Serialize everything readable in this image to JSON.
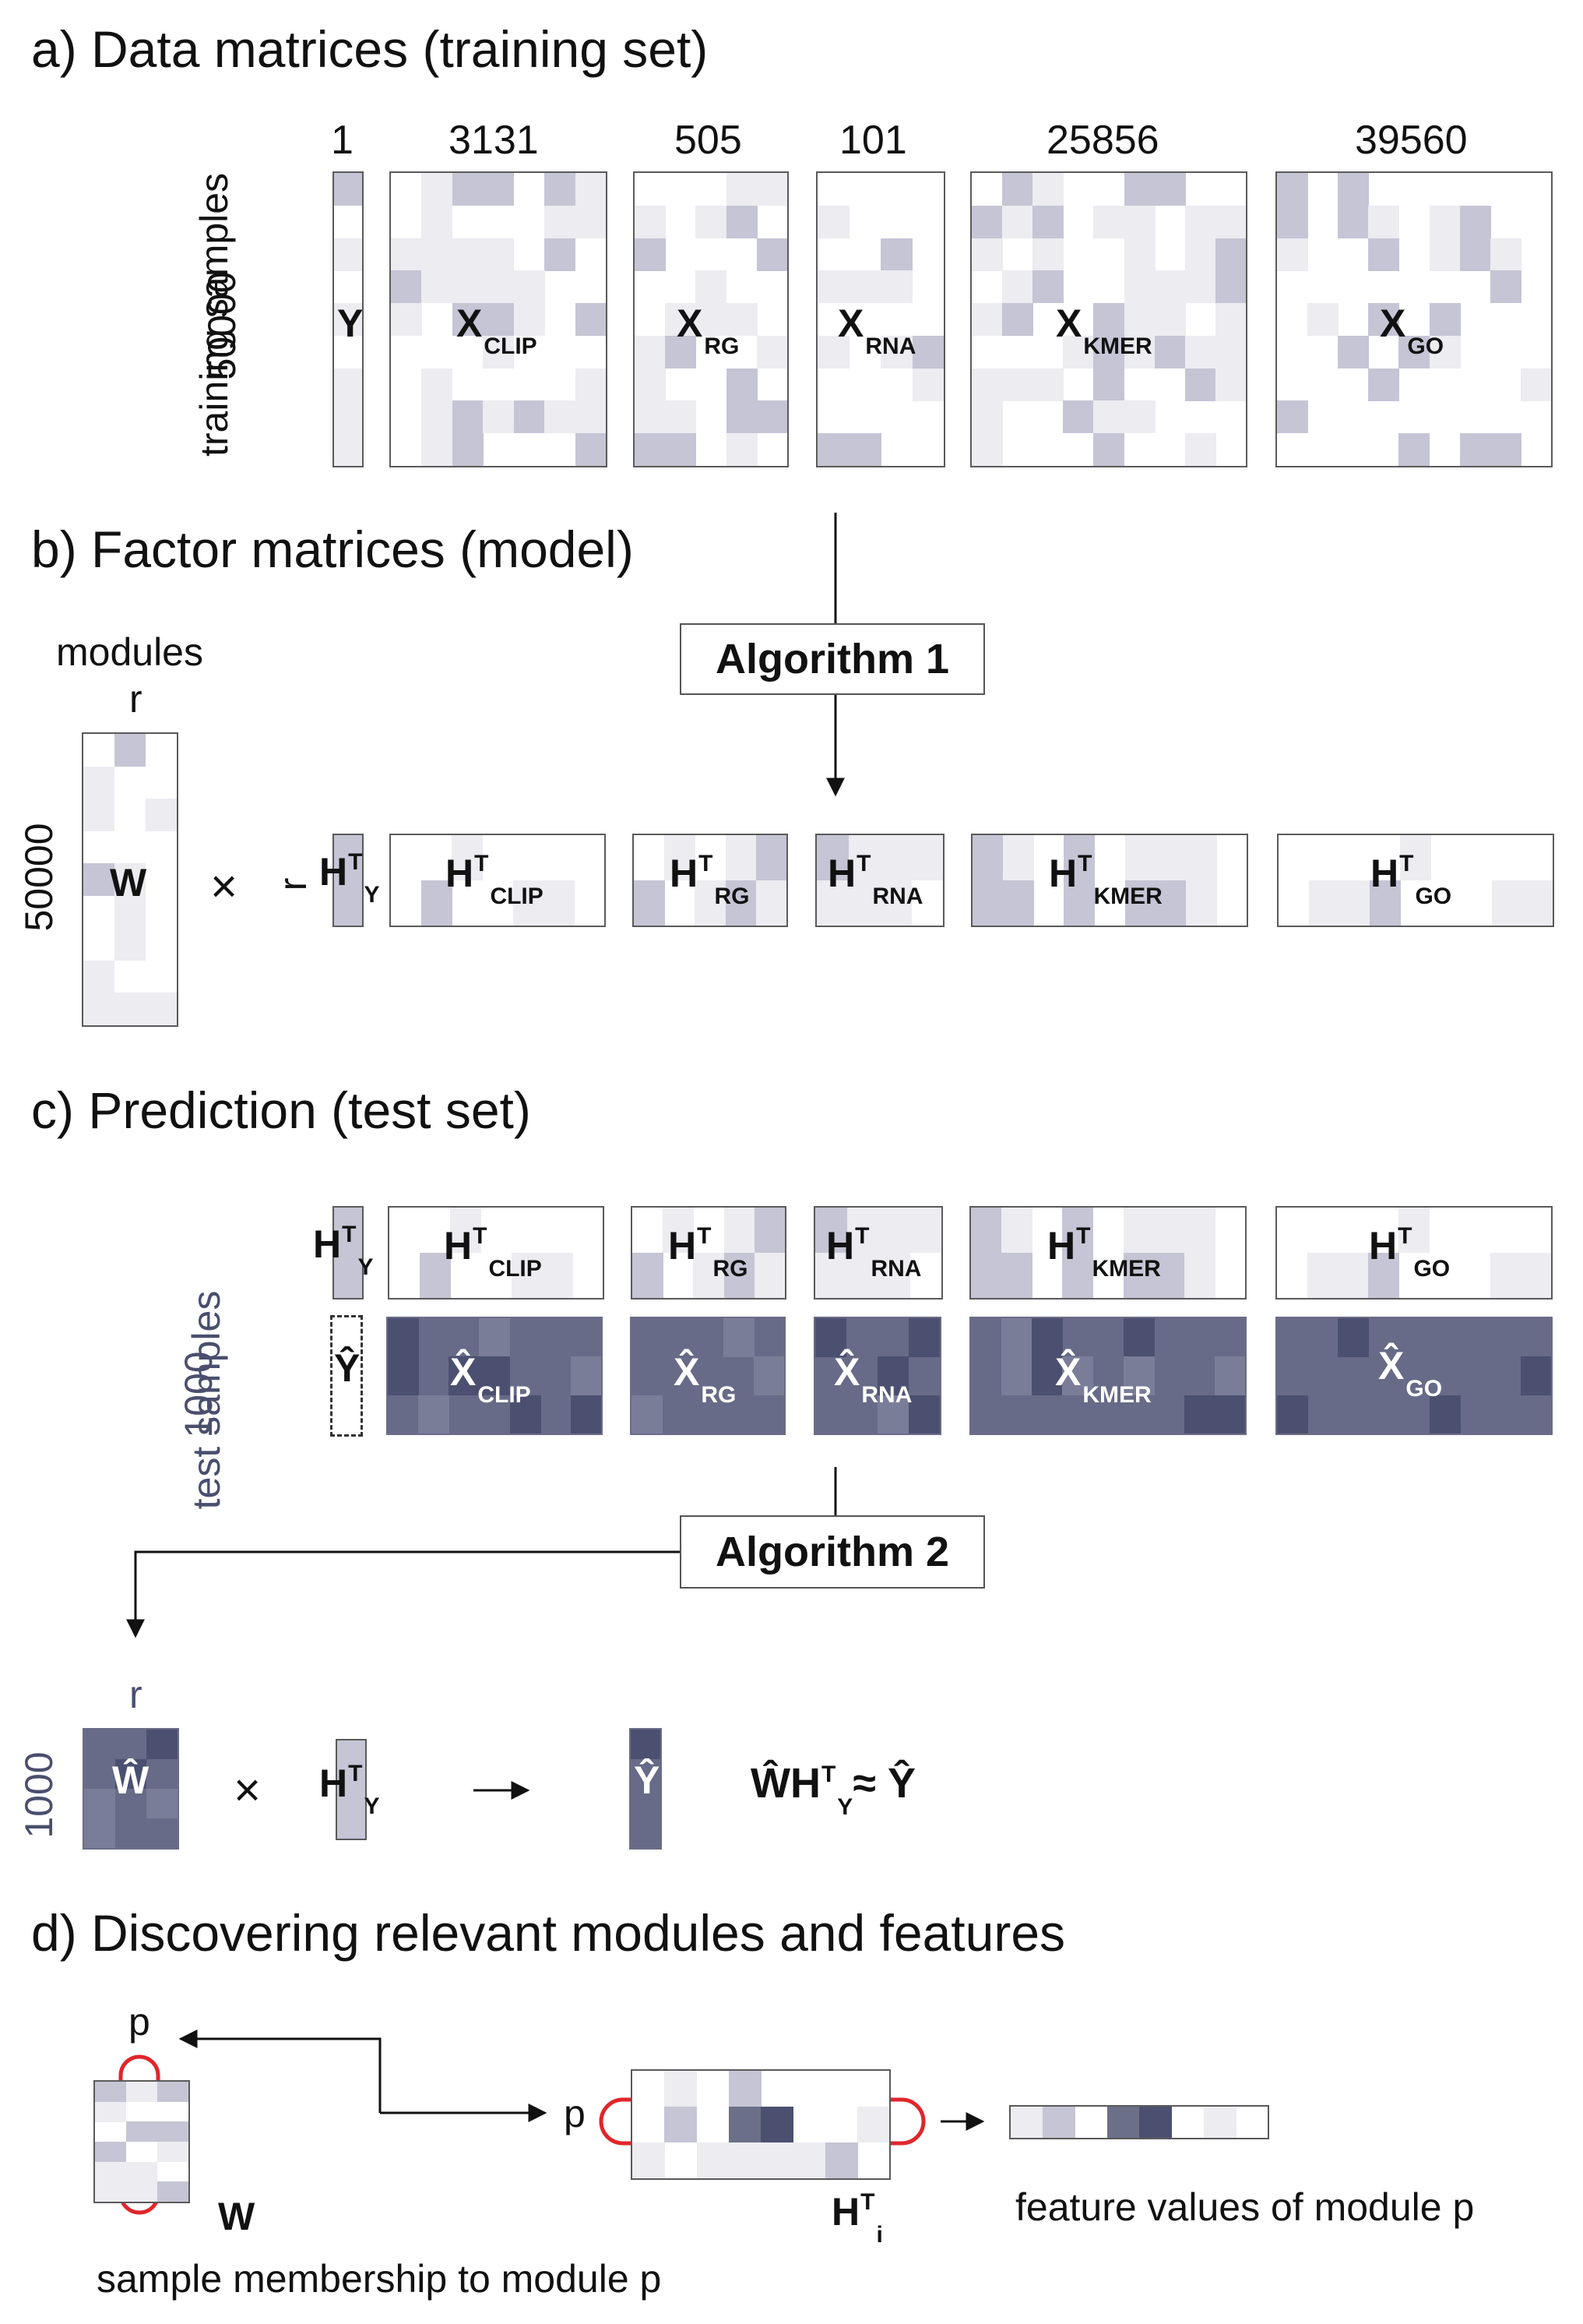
{
  "panel_a": {
    "title": "a) Data matrices (training set)",
    "side_label": "training samples",
    "side_count": "50000",
    "matrices": [
      {
        "count": "1",
        "name": "Y",
        "sub": ""
      },
      {
        "count": "3131",
        "name": "X",
        "sub": "CLIP"
      },
      {
        "count": "505",
        "name": "X",
        "sub": "RG"
      },
      {
        "count": "101",
        "name": "X",
        "sub": "RNA"
      },
      {
        "count": "25856",
        "name": "X",
        "sub": "KMER"
      },
      {
        "count": "39560",
        "name": "X",
        "sub": "GO"
      }
    ]
  },
  "panel_b": {
    "title": "b) Factor matrices (model)",
    "algorithm": "Algorithm 1",
    "modules_label": "modules",
    "r_label": "r",
    "row_count": "50000",
    "w_name": "W",
    "times": "×",
    "h_name": "H",
    "h_sup": "T",
    "h_subs": [
      "Y",
      "CLIP",
      "RG",
      "RNA",
      "KMER",
      "GO"
    ]
  },
  "panel_c": {
    "title": "c) Prediction (test set)",
    "algorithm": "Algorithm 2",
    "side_label": "test samples",
    "side_count": "1000",
    "h_name": "H",
    "h_sup": "T",
    "h_subs": [
      "Y",
      "CLIP",
      "RG",
      "RNA",
      "KMER",
      "GO"
    ],
    "xhat_names": [
      {
        "name": "Ŷ",
        "sub": ""
      },
      {
        "name": "X̂",
        "sub": "CLIP"
      },
      {
        "name": "X̂",
        "sub": "RG"
      },
      {
        "name": "X̂",
        "sub": "RNA"
      },
      {
        "name": "X̂",
        "sub": "KMER"
      },
      {
        "name": "X̂",
        "sub": "GO"
      }
    ],
    "bottom": {
      "r_label": "r",
      "row_count": "1000",
      "w_hat": "Ŵ",
      "times": "×",
      "hty_name": "H",
      "hty_sup": "T",
      "hty_sub": "Y",
      "arrow": "→",
      "y_hat": "Ŷ",
      "eq_w": "ŴH",
      "eq_sup": "T",
      "eq_sub": "Y",
      "eq_rest": "≈ Ŷ"
    }
  },
  "panel_d": {
    "title": "d) Discovering relevant modules and features",
    "p_label": "p",
    "w_name": "W",
    "h_name": "H",
    "h_sup": "T",
    "h_sub": "i",
    "membership_caption": "sample membership to module p",
    "feature_caption": "feature values of module p"
  },
  "colors": {
    "light_cell": "#ececf1",
    "mid_cell": "#c5c5d5",
    "dark_fill": "#676b87",
    "darker_cell": "#4c5070",
    "highlight_ring": "#e0262b"
  }
}
